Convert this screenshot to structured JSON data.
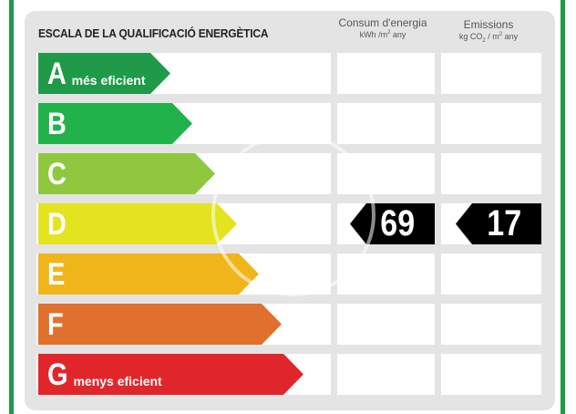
{
  "title": "ESCALA DE LA QUALIFICACIÓ ENERGÈTICA",
  "columns": {
    "consum": {
      "heading": "Consum d'energia",
      "unit_pre": "kWh /m",
      "unit_sup": "2",
      "unit_post": " any"
    },
    "emissions": {
      "heading": "Emissions",
      "unit_pre": "kg CO",
      "unit_sub": "2",
      "unit_mid": " / m",
      "unit_sup": "2",
      "unit_post": " any"
    }
  },
  "bands": [
    {
      "letter": "A",
      "subtitle": "més eficient",
      "color": "#1f9a48"
    },
    {
      "letter": "B",
      "subtitle": "",
      "color": "#21b24b"
    },
    {
      "letter": "C",
      "subtitle": "",
      "color": "#8fc83f"
    },
    {
      "letter": "D",
      "subtitle": "",
      "color": "#e4e31f"
    },
    {
      "letter": "E",
      "subtitle": "",
      "color": "#f1b51c"
    },
    {
      "letter": "F",
      "subtitle": "",
      "color": "#e0702b"
    },
    {
      "letter": "G",
      "subtitle": "menys eficient",
      "color": "#e1262b"
    }
  ],
  "rating": {
    "band": "D",
    "consum_value": "69",
    "emissions_value": "17"
  }
}
